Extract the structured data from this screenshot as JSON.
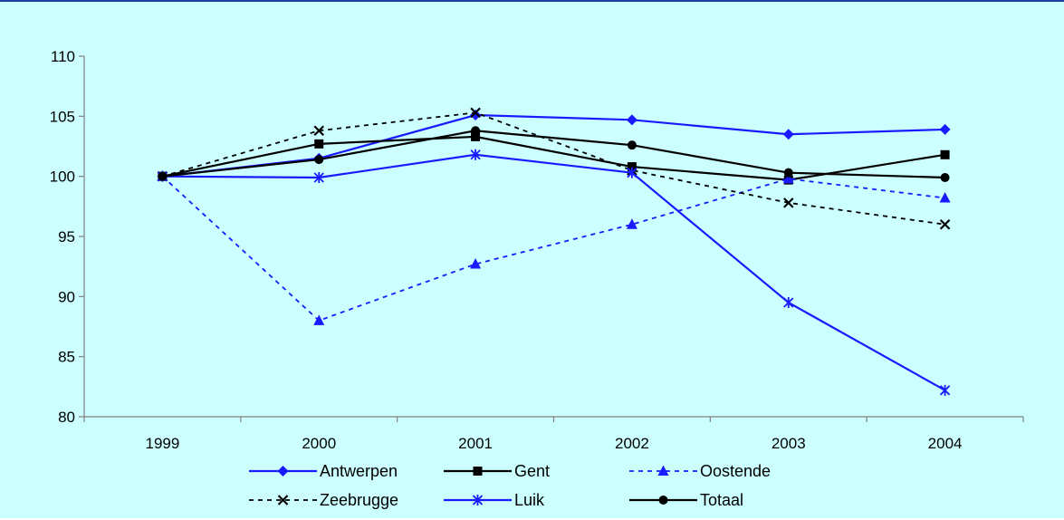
{
  "chart_data": {
    "type": "line",
    "title": "",
    "xlabel": "",
    "ylabel": "",
    "categories": [
      "1999",
      "2000",
      "2001",
      "2002",
      "2003",
      "2004"
    ],
    "ylim": [
      80,
      110
    ],
    "yticks": [
      80,
      85,
      90,
      95,
      100,
      105,
      110
    ],
    "grid": false,
    "legend_position": "bottom",
    "background_color": "#ccffff",
    "series": [
      {
        "name": "Antwerpen",
        "values": [
          100,
          101.5,
          105.1,
          104.7,
          103.5,
          103.9
        ],
        "color": "#1a1aff",
        "dash": "solid",
        "marker": "diamond"
      },
      {
        "name": "Gent",
        "values": [
          100,
          102.7,
          103.3,
          100.8,
          99.7,
          101.8
        ],
        "color": "#000000",
        "dash": "solid",
        "marker": "square"
      },
      {
        "name": "Oostende",
        "values": [
          100,
          88.0,
          92.7,
          96.0,
          99.8,
          98.2
        ],
        "color": "#1a1aff",
        "dash": "dotted",
        "marker": "triangle"
      },
      {
        "name": "Zeebrugge",
        "values": [
          100,
          103.8,
          105.3,
          100.5,
          97.8,
          96.0
        ],
        "color": "#000000",
        "dash": "dotted",
        "marker": "x"
      },
      {
        "name": "Luik",
        "values": [
          100,
          99.9,
          101.8,
          100.3,
          89.5,
          82.2
        ],
        "color": "#1a1aff",
        "dash": "solid",
        "marker": "star"
      },
      {
        "name": "Totaal",
        "values": [
          100,
          101.4,
          103.8,
          102.6,
          100.3,
          99.9
        ],
        "color": "#000000",
        "dash": "solid",
        "marker": "circle"
      }
    ]
  }
}
